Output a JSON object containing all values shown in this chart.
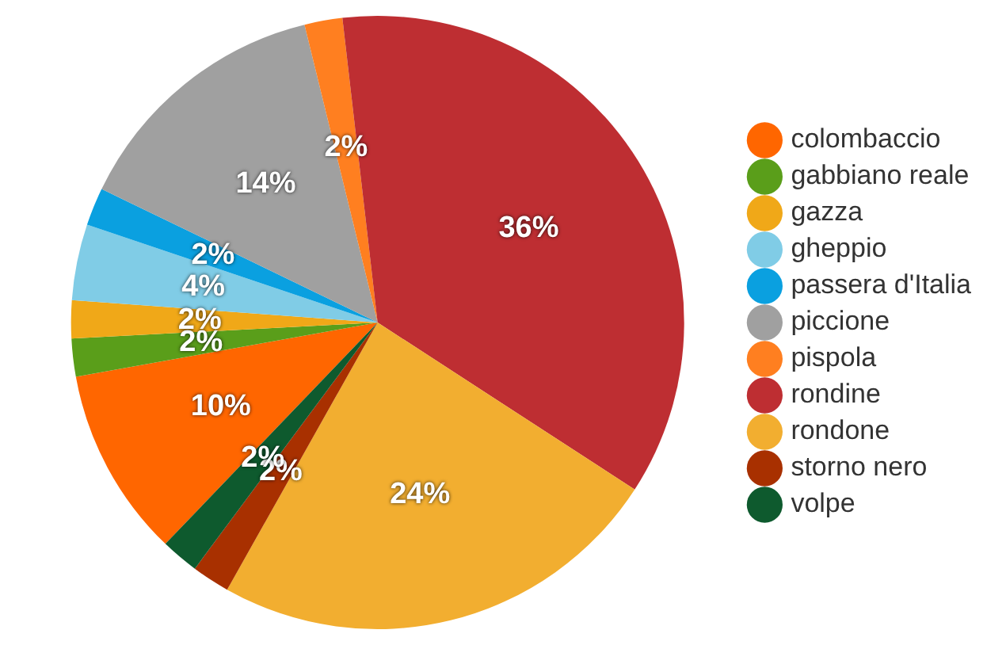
{
  "chart_data": {
    "type": "pie",
    "categories": [
      "colombaccio",
      "gabbiano reale",
      "gazza",
      "gheppio",
      "passera d'Italia",
      "piccione",
      "pispola",
      "rondine",
      "rondone",
      "storno nero",
      "volpe"
    ],
    "values": [
      10,
      2,
      2,
      4,
      2,
      14,
      2,
      36,
      24,
      2,
      2
    ],
    "colors": [
      "#ff6600",
      "#5a9e1a",
      "#f0a818",
      "#80cce6",
      "#0aa0e0",
      "#a0a0a0",
      "#ff7f20",
      "#be2e32",
      "#f2ae30",
      "#a83000",
      "#0e5a2e"
    ],
    "value_labels": [
      "10%",
      "2%",
      "2%",
      "4%",
      "2%",
      "14%",
      "2%",
      "36%",
      "24%",
      "2%",
      "2%"
    ],
    "legend": "right"
  }
}
